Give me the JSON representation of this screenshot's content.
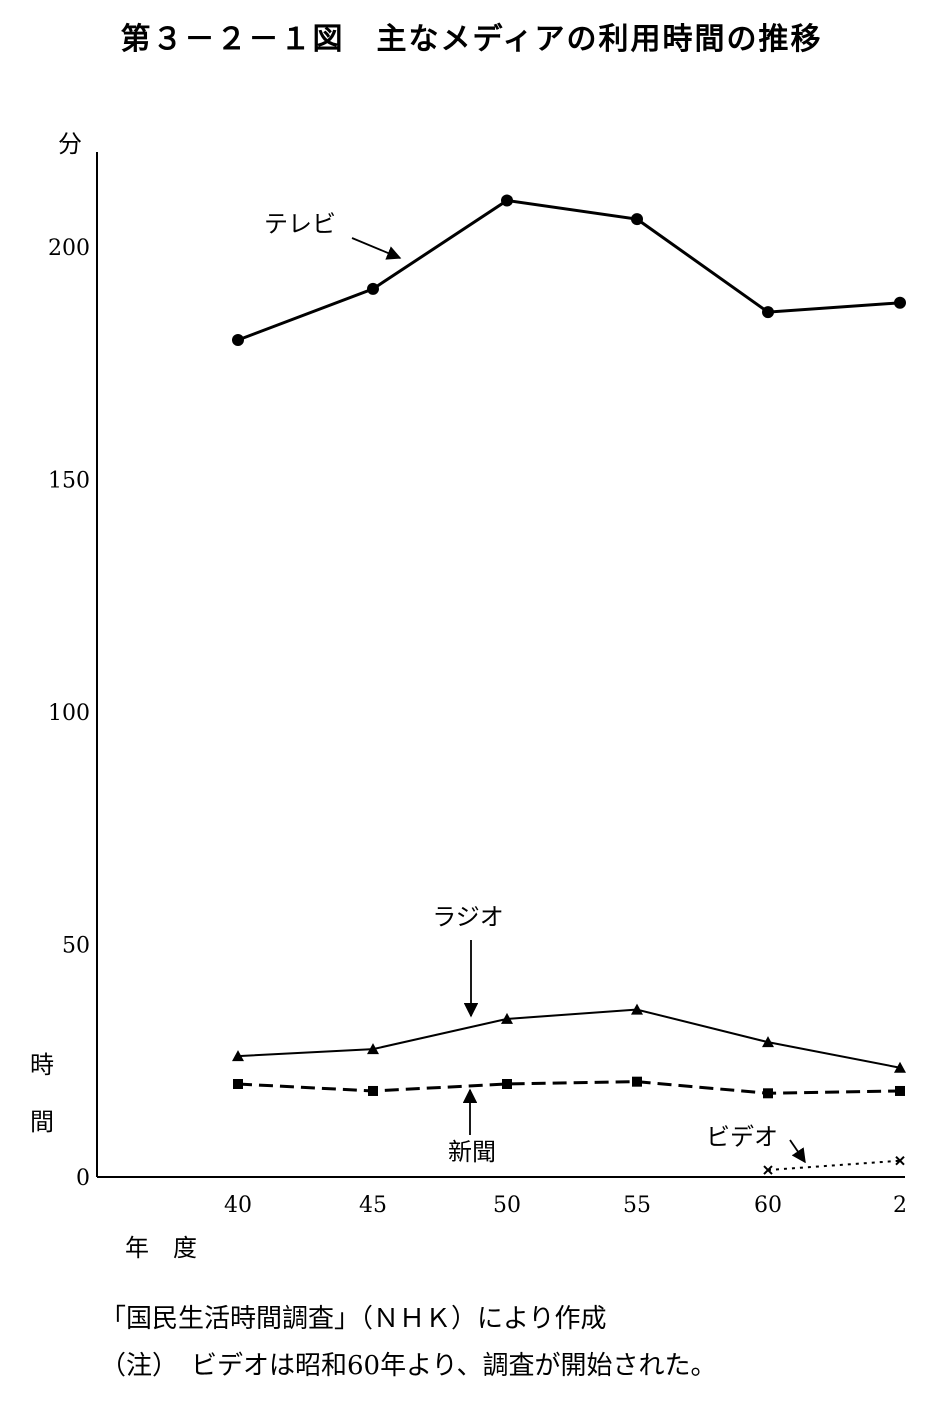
{
  "title": "第３－２－１図　主なメディアの利用時間の推移",
  "source_note": "「国民生活時間調査」（ＮＨＫ）により作成",
  "footnote": "（注）　ビデオは昭和60年より、調査が開始された。",
  "chart_data": {
    "type": "line",
    "title": "第３－２－１図　主なメディアの利用時間の推移",
    "y_unit_label": "分",
    "ylabel": "時間",
    "xlabel": "年　度",
    "categories": [
      "40",
      "45",
      "50",
      "55",
      "60",
      "2"
    ],
    "yticks": [
      "0",
      "50",
      "100",
      "150",
      "200"
    ],
    "ylim": [
      0,
      220
    ],
    "grid": false,
    "series": [
      {
        "name": "テレビ",
        "values": [
          180,
          191,
          210,
          206,
          186,
          188
        ],
        "marker": "circle",
        "dash": "solid",
        "width": 3
      },
      {
        "name": "ラジオ",
        "values": [
          26,
          27.5,
          34,
          36,
          29,
          23.5
        ],
        "marker": "triangle",
        "dash": "solid",
        "width": 2
      },
      {
        "name": "新聞",
        "values": [
          20,
          18.5,
          20,
          20.5,
          18,
          18.5
        ],
        "marker": "square",
        "dash": "dashed",
        "width": 3
      },
      {
        "name": "ビデオ",
        "values": [
          null,
          null,
          null,
          null,
          1.5,
          3.5
        ],
        "marker": "cross",
        "dash": "dotted",
        "width": 2
      }
    ]
  }
}
